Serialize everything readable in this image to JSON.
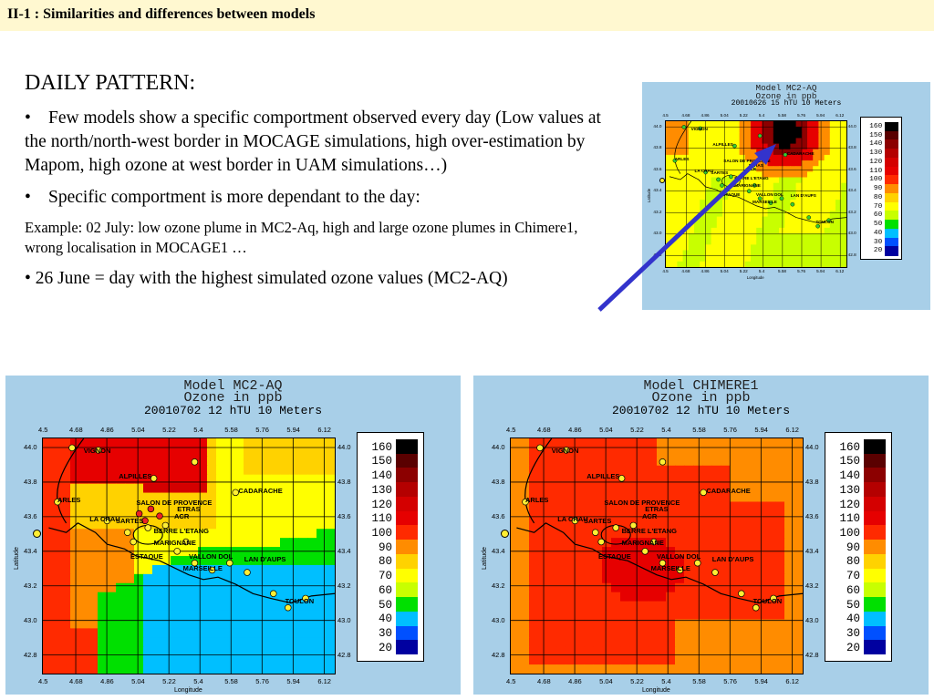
{
  "slide": {
    "title": "II-1 : Similarities and differences between models",
    "heading": "DAILY PATTERN:",
    "bullet1": "Few models show a specific comportment observed every day (Low values at the north/north-west border in MOCAGE simulations, high over-estimation by Mapom, high ozone at west border in UAM simulations…)",
    "bullet2": "Specific comportment is more dependant to the day:",
    "example": "Example: 02 July: low ozone plume in MC2-Aq, high and large ozone plumes in Chimere1, wrong localisation in MOCAGE1 …",
    "bullet3": "• 26 June = day with the  highest simulated ozone values (MC2-AQ)",
    "bullet_symbol": "•"
  },
  "legend": {
    "values": [
      "160",
      "150",
      "140",
      "130",
      "120",
      "110",
      "100",
      "90",
      "80",
      "70",
      "60",
      "50",
      "40",
      "30",
      "20"
    ],
    "colors": [
      "#000000",
      "#5a0000",
      "#8c0000",
      "#b40000",
      "#d40000",
      "#e60000",
      "#ff2a00",
      "#ff8c00",
      "#ffd200",
      "#ffff00",
      "#c8ff00",
      "#00e000",
      "#00bfff",
      "#0050ff",
      "#0000a0"
    ]
  },
  "axes": {
    "x_ticks": [
      "4.5",
      "4.68",
      "4.86",
      "5.04",
      "5.22",
      "5.4",
      "5.58",
      "5.76",
      "5.94",
      "6.12"
    ],
    "y_ticks": [
      "44.0",
      "43.8",
      "43.6",
      "43.4",
      "43.2",
      "43.0",
      "42.8"
    ],
    "xlabel": "Longitude",
    "ylabel": "Latitude"
  },
  "cities": [
    "VIGNON",
    "ALPILLES",
    "CADARACHE",
    "ARLES",
    "SALON DE PROVENCE",
    "LA CRAU",
    "BERRE L'ETANG",
    "MARIGNANE",
    "ESTAQUE",
    "VALLON DOL",
    "MARSEILLE",
    "LAN D'AUPS",
    "TOULON",
    "SARTES",
    "ACR",
    "ETRAS"
  ],
  "panels": [
    {
      "id": "top",
      "model": "Model MC2-AQ",
      "var": "Ozone in ppb",
      "date": "20010626  15 hTU  10 Meters"
    },
    {
      "id": "left",
      "model": "Model MC2-AQ",
      "var": "Ozone in ppb",
      "date": "20010702  12 hTU  10 Meters"
    },
    {
      "id": "right",
      "model": "Model CHIMERE1",
      "var": "Ozone in ppb",
      "date": "20010702  12 hTU  10 Meters"
    }
  ],
  "arrow_color": "#3333cc"
}
